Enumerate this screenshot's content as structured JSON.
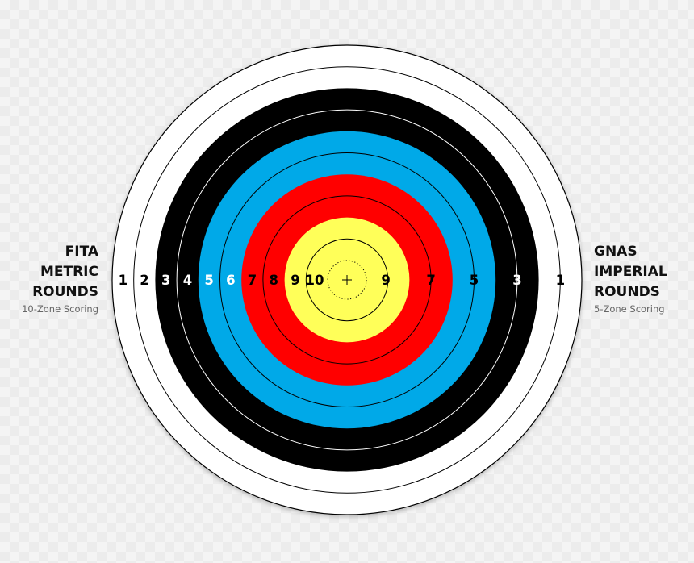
{
  "left_label": {
    "lines": [
      "FITA",
      "METRIC",
      "ROUNDS"
    ],
    "subtitle": "10-Zone Scoring"
  },
  "right_label": {
    "lines": [
      "GNAS",
      "IMPERIAL",
      "ROUNDS"
    ],
    "subtitle": "5-Zone Scoring"
  },
  "rings": [
    {
      "zone": "white",
      "color": "#ffffff"
    },
    {
      "zone": "black",
      "color": "#000000"
    },
    {
      "zone": "blue",
      "color": "#00a9e8"
    },
    {
      "zone": "red",
      "color": "#ff0000"
    },
    {
      "zone": "gold",
      "color": "#ffff59"
    }
  ],
  "fita_scores": [
    "1",
    "2",
    "3",
    "4",
    "5",
    "6",
    "7",
    "8",
    "9",
    "10"
  ],
  "gnas_scores": [
    "9",
    "7",
    "5",
    "3",
    "1"
  ],
  "colors": {
    "label_text": "#111111",
    "subtitle_text": "#666666",
    "ring_line": "#000000",
    "dark_ring_line": "#ffffff"
  }
}
